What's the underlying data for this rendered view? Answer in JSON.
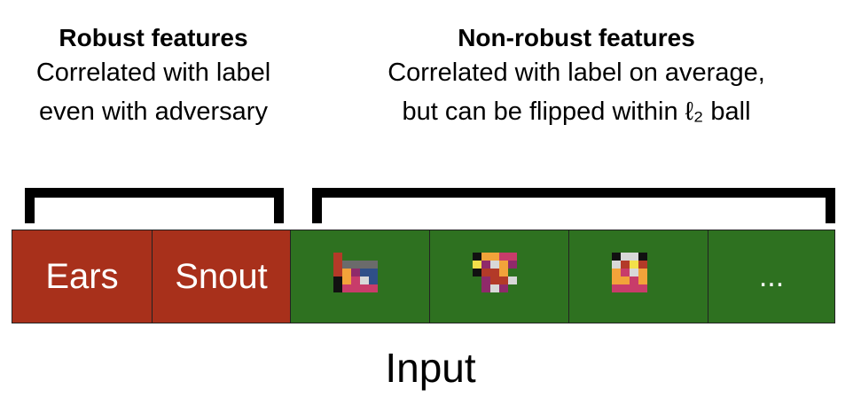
{
  "robust": {
    "title": "Robust features",
    "line1": "Correlated with label",
    "line2": "even with adversary"
  },
  "non_robust": {
    "title": "Non-robust features",
    "line1": "Correlated with label on average,",
    "line2": "but can be flipped within ℓ₂ ball"
  },
  "cells": [
    {
      "label": "Ears",
      "kind": "robust",
      "color": "#a8301b"
    },
    {
      "label": "Snout",
      "kind": "robust",
      "color": "#a8301b"
    },
    {
      "label": "",
      "kind": "non-robust",
      "color": "#2e7120",
      "icon": "pixel-pattern-1"
    },
    {
      "label": "",
      "kind": "non-robust",
      "color": "#2e7120",
      "icon": "pixel-pattern-2"
    },
    {
      "label": "",
      "kind": "non-robust",
      "color": "#2e7120",
      "icon": "pixel-pattern-3"
    },
    {
      "label": "...",
      "kind": "non-robust",
      "color": "#2e7120"
    }
  ],
  "input_label": "Input"
}
